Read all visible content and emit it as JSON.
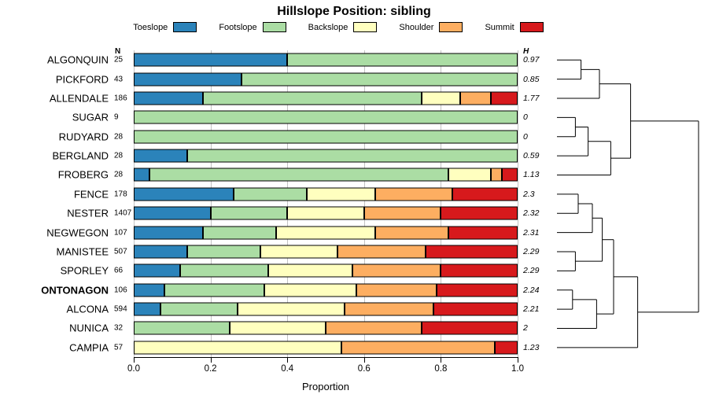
{
  "title": "Hillslope Position: sibling",
  "xlabel": "Proportion",
  "n_header": "N",
  "h_header": "H",
  "x_ticks": [
    "0.0",
    "0.2",
    "0.4",
    "0.6",
    "0.8",
    "1.0"
  ],
  "legend": [
    {
      "label": "Toeslope",
      "color": "#2B83BA"
    },
    {
      "label": "Footslope",
      "color": "#ABDDA4"
    },
    {
      "label": "Backslope",
      "color": "#FFFFBF"
    },
    {
      "label": "Shoulder",
      "color": "#FDAE61"
    },
    {
      "label": "Summit",
      "color": "#D7191C"
    }
  ],
  "chart_data": {
    "type": "bar",
    "stacked": true,
    "orientation": "horizontal",
    "xlim": [
      0,
      1
    ],
    "grid": true,
    "series_names": [
      "Toeslope",
      "Footslope",
      "Backslope",
      "Shoulder",
      "Summit"
    ],
    "series_colors": [
      "#2B83BA",
      "#ABDDA4",
      "#FFFFBF",
      "#FDAE61",
      "#D7191C"
    ],
    "rows": [
      {
        "name": "ALGONQUIN",
        "n": "25",
        "h": "0.97",
        "bold": false,
        "values": [
          0.4,
          0.6,
          0,
          0,
          0
        ]
      },
      {
        "name": "PICKFORD",
        "n": "43",
        "h": "0.85",
        "bold": false,
        "values": [
          0.28,
          0.72,
          0,
          0,
          0
        ]
      },
      {
        "name": "ALLENDALE",
        "n": "186",
        "h": "1.77",
        "bold": false,
        "values": [
          0.18,
          0.57,
          0.1,
          0.08,
          0.07
        ]
      },
      {
        "name": "SUGAR",
        "n": "9",
        "h": "0",
        "bold": false,
        "values": [
          0,
          1.0,
          0,
          0,
          0
        ]
      },
      {
        "name": "RUDYARD",
        "n": "28",
        "h": "0",
        "bold": false,
        "values": [
          0,
          1.0,
          0,
          0,
          0
        ]
      },
      {
        "name": "BERGLAND",
        "n": "28",
        "h": "0.59",
        "bold": false,
        "values": [
          0.14,
          0.86,
          0,
          0,
          0
        ]
      },
      {
        "name": "FROBERG",
        "n": "28",
        "h": "1.13",
        "bold": false,
        "values": [
          0.04,
          0.78,
          0.11,
          0.03,
          0.04
        ]
      },
      {
        "name": "FENCE",
        "n": "178",
        "h": "2.3",
        "bold": false,
        "values": [
          0.26,
          0.19,
          0.18,
          0.2,
          0.17
        ]
      },
      {
        "name": "NESTER",
        "n": "1407",
        "h": "2.32",
        "bold": false,
        "values": [
          0.2,
          0.2,
          0.2,
          0.2,
          0.2
        ]
      },
      {
        "name": "NEGWEGON",
        "n": "107",
        "h": "2.31",
        "bold": false,
        "values": [
          0.18,
          0.19,
          0.26,
          0.19,
          0.18
        ]
      },
      {
        "name": "MANISTEE",
        "n": "507",
        "h": "2.29",
        "bold": false,
        "values": [
          0.14,
          0.19,
          0.2,
          0.23,
          0.24
        ]
      },
      {
        "name": "SPORLEY",
        "n": "66",
        "h": "2.29",
        "bold": false,
        "values": [
          0.12,
          0.23,
          0.22,
          0.23,
          0.2
        ]
      },
      {
        "name": "ONTONAGON",
        "n": "106",
        "h": "2.24",
        "bold": true,
        "values": [
          0.08,
          0.26,
          0.24,
          0.21,
          0.21
        ]
      },
      {
        "name": "ALCONA",
        "n": "594",
        "h": "2.21",
        "bold": false,
        "values": [
          0.07,
          0.2,
          0.28,
          0.23,
          0.22
        ]
      },
      {
        "name": "NUNICA",
        "n": "32",
        "h": "2",
        "bold": false,
        "values": [
          0,
          0.25,
          0.25,
          0.25,
          0.25
        ]
      },
      {
        "name": "CAMPIA",
        "n": "57",
        "h": "1.23",
        "bold": false,
        "values": [
          0,
          0,
          0.54,
          0.4,
          0.06
        ]
      }
    ]
  },
  "dendrogram": {
    "merges": [
      {
        "id": "M1",
        "a": "L0",
        "b": "L1",
        "h": 0.17
      },
      {
        "id": "M2",
        "a": "M1",
        "b": "L2",
        "h": 0.3
      },
      {
        "id": "M3",
        "a": "L3",
        "b": "L4",
        "h": 0.13
      },
      {
        "id": "M4",
        "a": "M3",
        "b": "L5",
        "h": 0.22
      },
      {
        "id": "M5",
        "a": "M4",
        "b": "L6",
        "h": 0.38
      },
      {
        "id": "M6",
        "a": "M2",
        "b": "M5",
        "h": 0.52
      },
      {
        "id": "M7",
        "a": "L7",
        "b": "L8",
        "h": 0.15
      },
      {
        "id": "M8",
        "a": "M7",
        "b": "L9",
        "h": 0.25
      },
      {
        "id": "M9",
        "a": "L10",
        "b": "L11",
        "h": 0.13
      },
      {
        "id": "M10",
        "a": "M8",
        "b": "M9",
        "h": 0.32
      },
      {
        "id": "M11",
        "a": "L12",
        "b": "L13",
        "h": 0.11
      },
      {
        "id": "M12",
        "a": "M11",
        "b": "L14",
        "h": 0.28
      },
      {
        "id": "M13",
        "a": "M10",
        "b": "M12",
        "h": 0.4
      },
      {
        "id": "M14",
        "a": "M13",
        "b": "L15",
        "h": 0.57
      },
      {
        "id": "M15",
        "a": "M6",
        "b": "M14",
        "h": 1.0
      }
    ]
  }
}
